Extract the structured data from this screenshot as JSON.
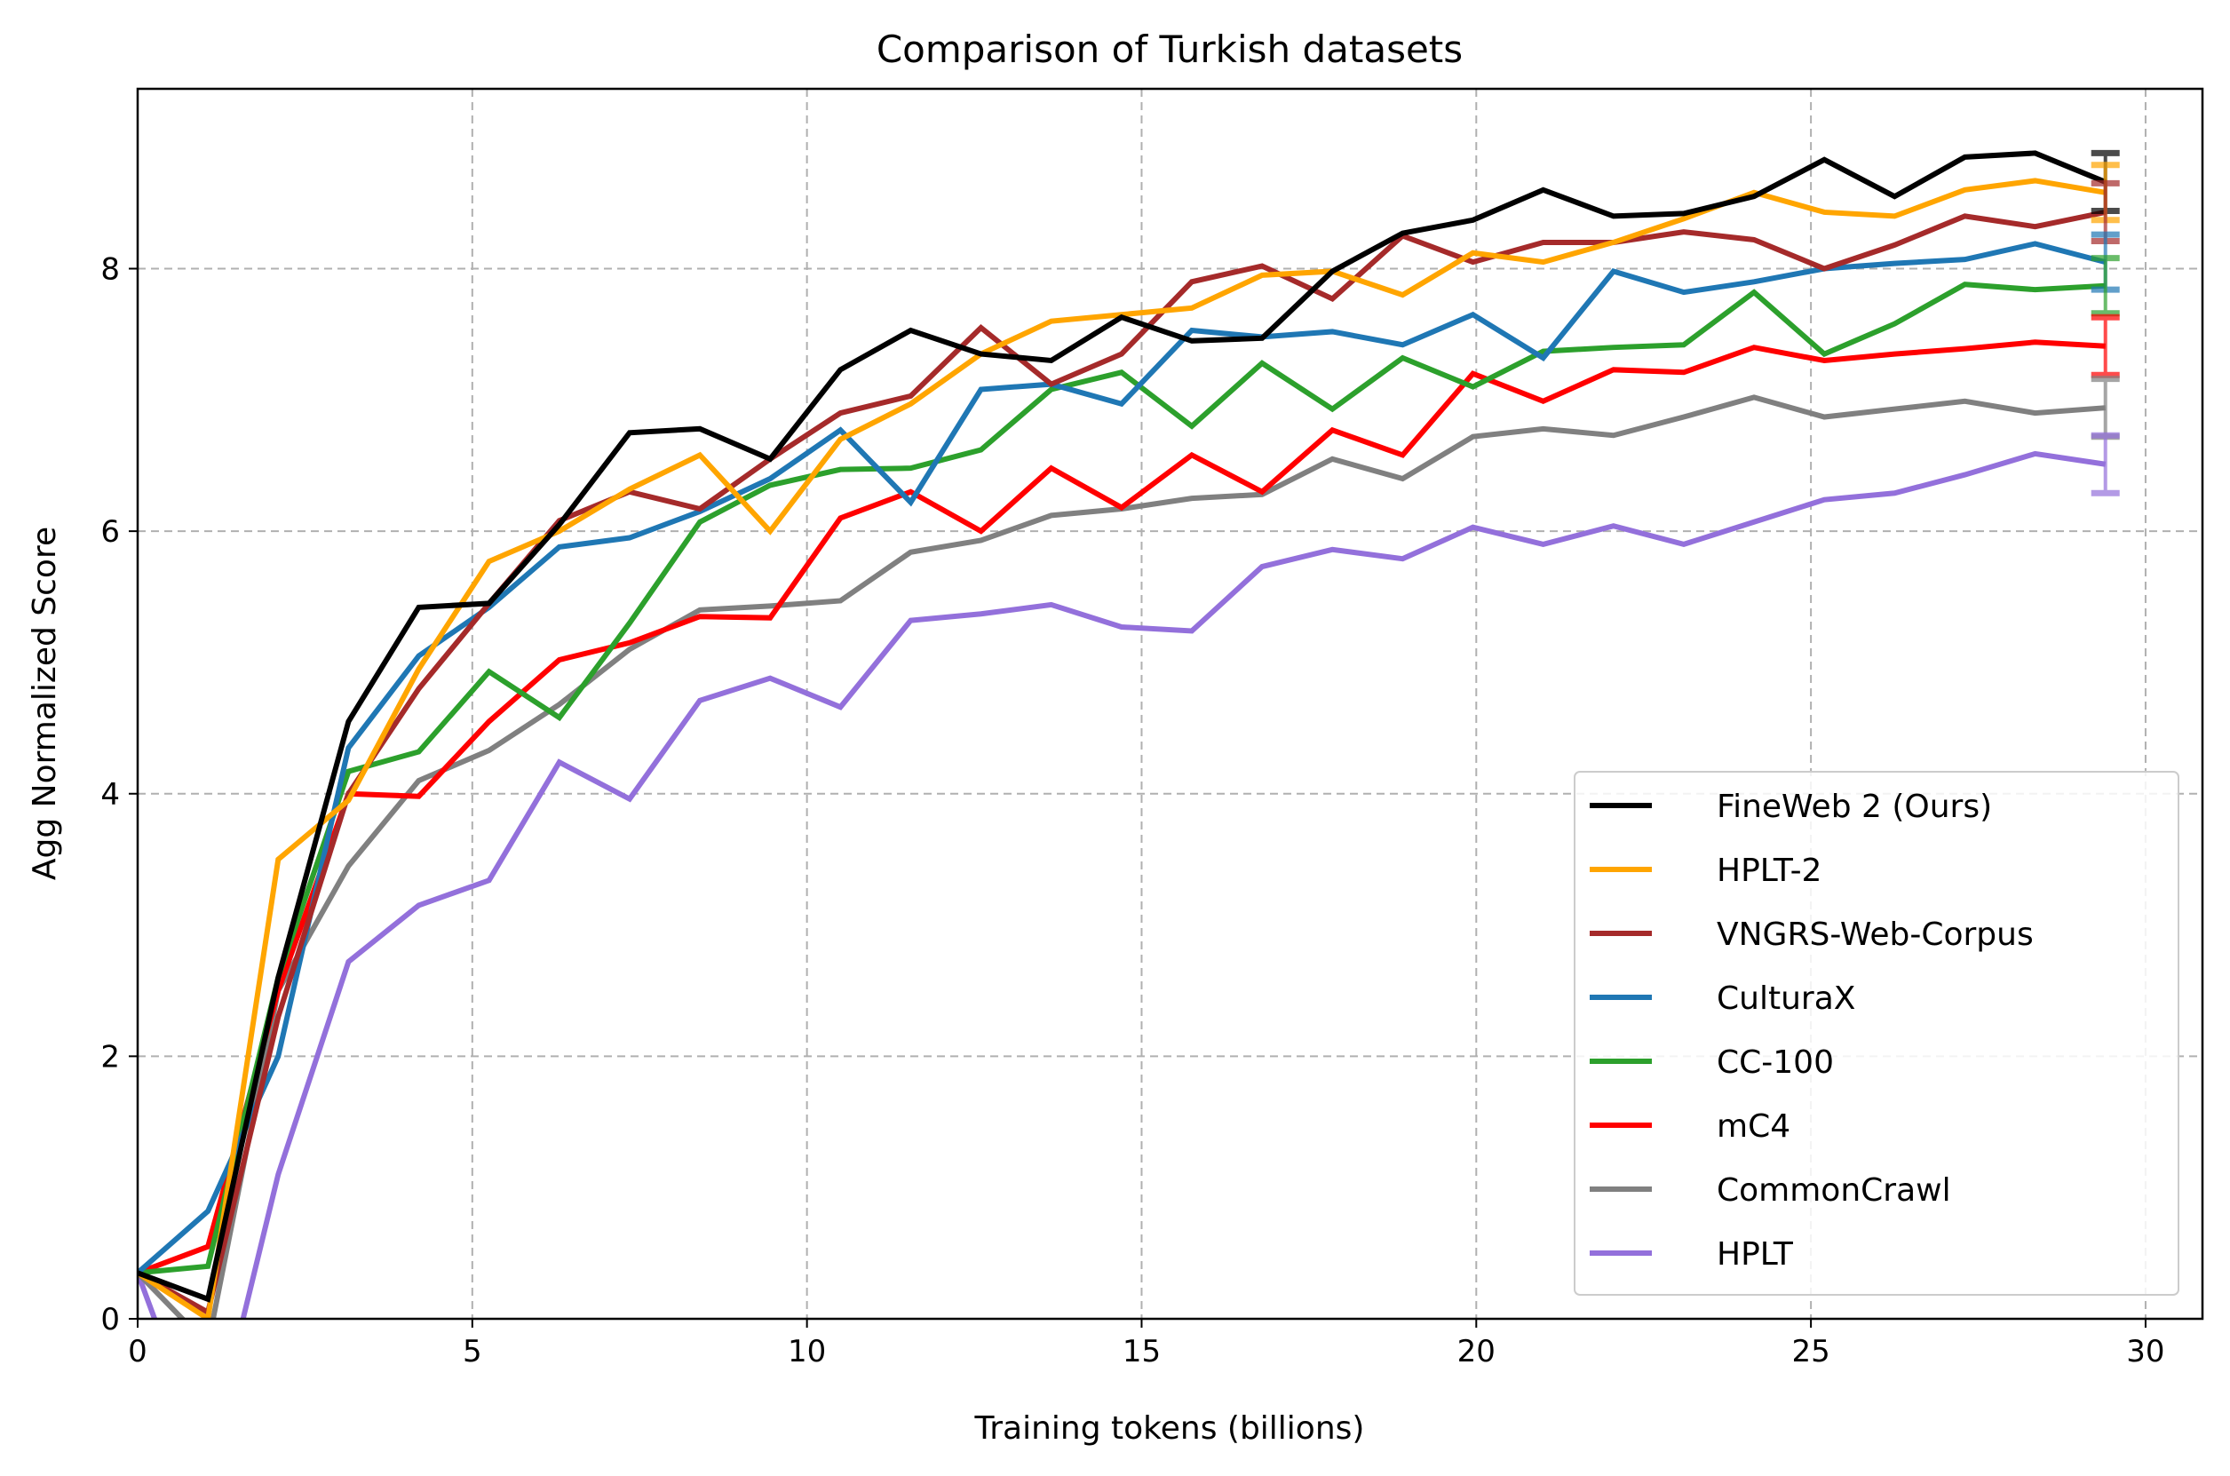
{
  "chart_data": {
    "type": "line",
    "title": "Comparison of Turkish datasets",
    "xlabel": "Training tokens (billions)",
    "ylabel": "Agg Normalized Score",
    "xlim": [
      0,
      30.85
    ],
    "ylim": [
      0,
      9.37
    ],
    "xticks": [
      "0",
      "5",
      "10",
      "15",
      "20",
      "25",
      "30"
    ],
    "yticks": [
      "0",
      "2",
      "4",
      "6",
      "8"
    ],
    "grid": true,
    "legend_position": "lower-right",
    "x": [
      0,
      1.05,
      2.1,
      3.15,
      4.2,
      5.25,
      6.3,
      7.35,
      8.4,
      9.45,
      10.5,
      11.55,
      12.6,
      13.65,
      14.7,
      15.75,
      16.8,
      17.85,
      18.9,
      19.95,
      21.0,
      22.05,
      23.1,
      24.15,
      25.2,
      26.25,
      27.3,
      28.35,
      29.4
    ],
    "series": [
      {
        "name": "FineWeb 2 (Ours)",
        "color": "#000000",
        "error": 0.22,
        "values": [
          0.35,
          0.15,
          2.6,
          4.55,
          5.42,
          5.45,
          6.05,
          6.75,
          6.78,
          6.55,
          7.23,
          7.53,
          7.35,
          7.3,
          7.63,
          7.45,
          7.47,
          7.98,
          8.27,
          8.37,
          8.6,
          8.4,
          8.42,
          8.55,
          8.83,
          8.55,
          8.85,
          8.88,
          8.66
        ]
      },
      {
        "name": "HPLT-2",
        "color": "#ffa500",
        "error": 0.21,
        "values": [
          0.35,
          0.0,
          3.5,
          3.95,
          4.95,
          5.77,
          6.0,
          6.32,
          6.58,
          6.0,
          6.7,
          6.97,
          7.35,
          7.6,
          7.65,
          7.7,
          7.95,
          7.98,
          7.8,
          8.12,
          8.05,
          8.2,
          8.38,
          8.58,
          8.43,
          8.4,
          8.6,
          8.67,
          8.58
        ]
      },
      {
        "name": "VNGRS-Web-Corpus",
        "color": "#a52a2a",
        "error": 0.22,
        "values": [
          0.35,
          0.05,
          2.3,
          4.0,
          4.8,
          5.45,
          6.08,
          6.3,
          6.17,
          6.55,
          6.9,
          7.03,
          7.55,
          7.12,
          7.35,
          7.9,
          8.02,
          7.77,
          8.25,
          8.05,
          8.2,
          8.2,
          8.28,
          8.22,
          8.0,
          8.18,
          8.4,
          8.32,
          8.43
        ]
      },
      {
        "name": "CulturaX",
        "color": "#1f77b4",
        "error": 0.21,
        "values": [
          0.35,
          0.82,
          2.0,
          4.35,
          5.05,
          5.42,
          5.88,
          5.95,
          6.15,
          6.4,
          6.77,
          6.22,
          7.08,
          7.12,
          6.97,
          7.53,
          7.48,
          7.52,
          7.42,
          7.65,
          7.32,
          7.98,
          7.82,
          7.9,
          8.0,
          8.04,
          8.07,
          8.19,
          8.05
        ]
      },
      {
        "name": "CC-100",
        "color": "#2ca02c",
        "error": 0.21,
        "values": [
          0.35,
          0.4,
          2.6,
          4.17,
          4.32,
          4.93,
          4.58,
          5.3,
          6.07,
          6.35,
          6.47,
          6.48,
          6.62,
          7.08,
          7.21,
          6.8,
          7.28,
          6.93,
          7.32,
          7.1,
          7.37,
          7.4,
          7.42,
          7.82,
          7.35,
          7.58,
          7.88,
          7.84,
          7.87
        ]
      },
      {
        "name": "mC4",
        "color": "#ff0000",
        "error": 0.22,
        "values": [
          0.35,
          0.55,
          2.5,
          4.0,
          3.98,
          4.55,
          5.02,
          5.15,
          5.35,
          5.34,
          6.1,
          6.3,
          6.0,
          6.48,
          6.18,
          6.58,
          6.3,
          6.77,
          6.58,
          7.2,
          6.99,
          7.23,
          7.21,
          7.4,
          7.3,
          7.35,
          7.39,
          7.44,
          7.41
        ]
      },
      {
        "name": "CommonCrawl",
        "color": "#808080",
        "error": 0.22,
        "values": [
          0.35,
          -0.2,
          2.5,
          3.45,
          4.1,
          4.33,
          4.68,
          5.1,
          5.4,
          5.43,
          5.47,
          5.84,
          5.93,
          6.12,
          6.17,
          6.25,
          6.28,
          6.55,
          6.4,
          6.72,
          6.78,
          6.73,
          6.87,
          7.02,
          6.87,
          6.93,
          6.99,
          6.9,
          6.94
        ]
      },
      {
        "name": "HPLT",
        "color": "#9370db",
        "error": 0.22,
        "values": [
          0.35,
          -1.1,
          1.1,
          2.72,
          3.15,
          3.34,
          4.24,
          3.96,
          4.71,
          4.88,
          4.66,
          5.32,
          5.37,
          5.44,
          5.27,
          5.24,
          5.73,
          5.86,
          5.79,
          6.03,
          5.9,
          6.04,
          5.9,
          6.07,
          6.24,
          6.29,
          6.43,
          6.59,
          6.51
        ]
      }
    ]
  }
}
